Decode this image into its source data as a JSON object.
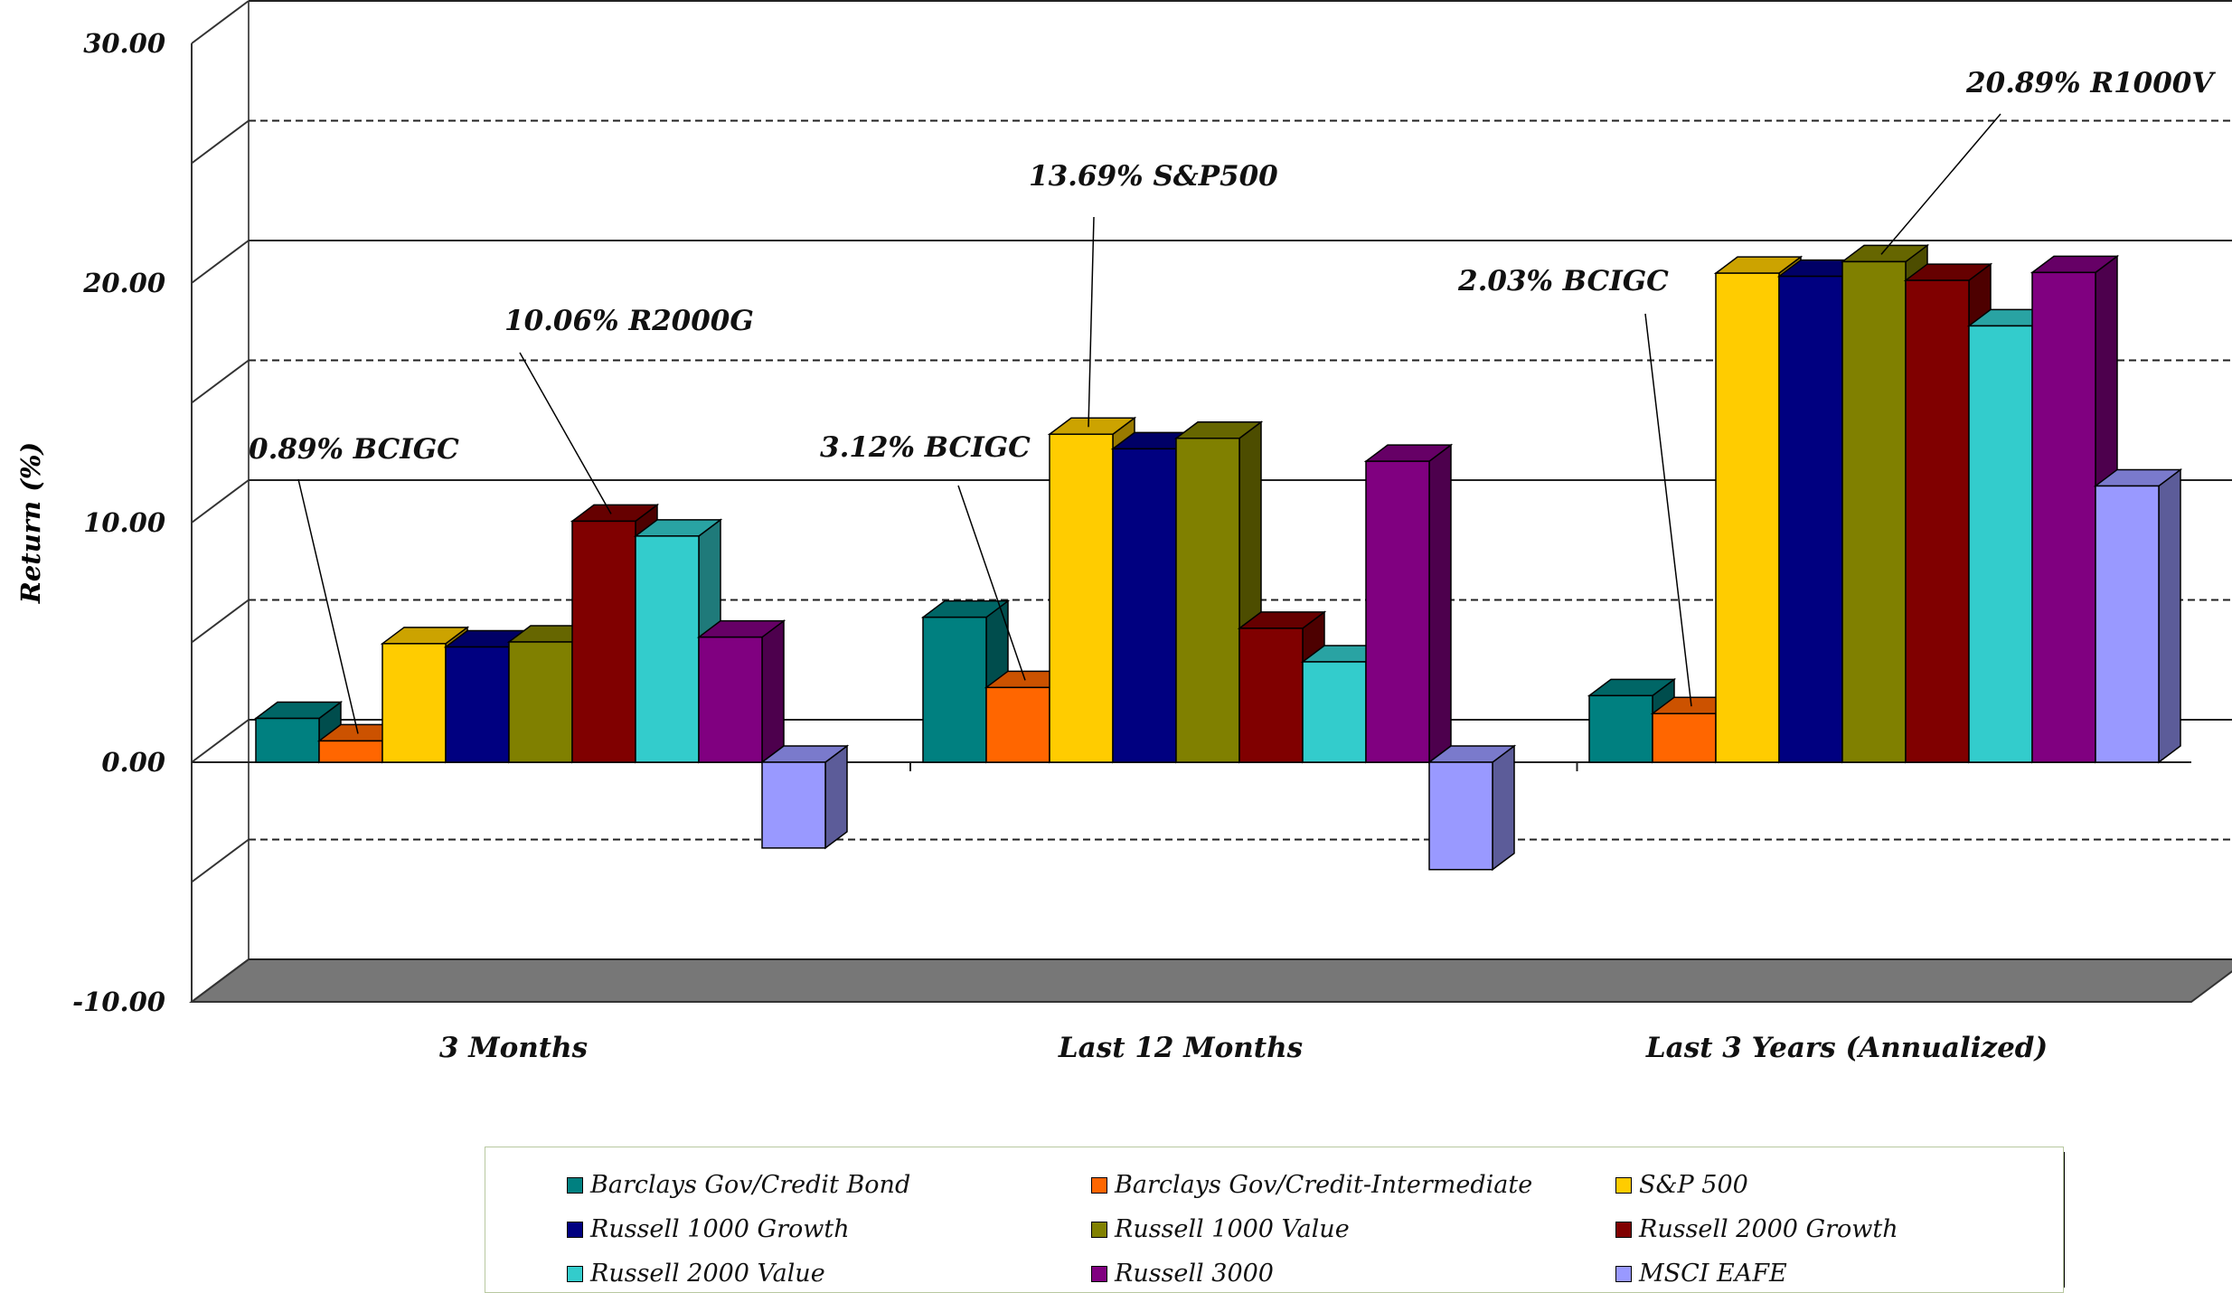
{
  "chart_data": {
    "type": "bar",
    "title": "",
    "xlabel": "",
    "ylabel": "Return (%)",
    "ylim": [
      -10,
      30
    ],
    "yticks": [
      "30.00",
      "20.00",
      "10.00",
      "0.00",
      "-10.00"
    ],
    "grid": true,
    "legend_position": "bottom",
    "categories": [
      "3 Months",
      "Last 12 Months",
      "Last 3 Years (Annualized)"
    ],
    "series": [
      {
        "name": "Barclays Gov/Credit Bond",
        "color": "#008080",
        "values": [
          1.83,
          6.05,
          2.78
        ]
      },
      {
        "name": "Barclays Gov/Credit-Intermediate",
        "color": "#ff6600",
        "values": [
          0.89,
          3.12,
          2.03
        ]
      },
      {
        "name": "S&P 500",
        "color": "#ffcc00",
        "values": [
          4.95,
          13.69,
          20.41
        ]
      },
      {
        "name": "Russell 1000 Growth",
        "color": "#000080",
        "values": [
          4.81,
          13.08,
          20.28
        ]
      },
      {
        "name": "Russell 1000 Value",
        "color": "#808000",
        "values": [
          5.02,
          13.52,
          20.89
        ]
      },
      {
        "name": "Russell 2000 Growth",
        "color": "#800000",
        "values": [
          10.06,
          5.59,
          20.11
        ]
      },
      {
        "name": "Russell 2000 Value",
        "color": "#33cccc",
        "values": [
          9.44,
          4.19,
          18.21
        ]
      },
      {
        "name": "Russell 3000",
        "color": "#800080",
        "values": [
          5.22,
          12.56,
          20.44
        ]
      },
      {
        "name": "MSCI EAFE",
        "color": "#9999ff",
        "values": [
          -3.58,
          -4.48,
          11.53
        ]
      }
    ],
    "annotations": [
      {
        "text": "0.89% BCIGC",
        "category": "3 Months",
        "series": "Barclays Gov/Credit-Intermediate"
      },
      {
        "text": "10.06% R2000G",
        "category": "3 Months",
        "series": "Russell 2000 Growth"
      },
      {
        "text": "3.12% BCIGC",
        "category": "Last 12 Months",
        "series": "Barclays Gov/Credit-Intermediate"
      },
      {
        "text": "13.69% S&P500",
        "category": "Last 12 Months",
        "series": "S&P 500"
      },
      {
        "text": "2.03% BCIGC",
        "category": "Last 3 Years (Annualized)",
        "series": "Barclays Gov/Credit-Intermediate"
      },
      {
        "text": "20.89% R1000V",
        "category": "Last 3 Years (Annualized)",
        "series": "Russell 1000 Value"
      }
    ]
  }
}
